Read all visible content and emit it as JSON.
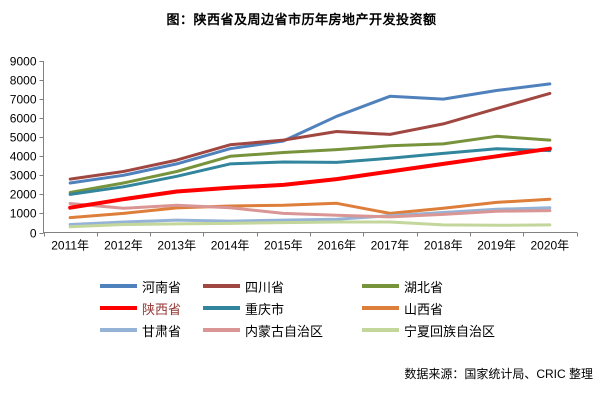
{
  "chart_data": {
    "type": "line",
    "title": "图：陕西省及周边省市历年房地产开发投资额",
    "xlabel": "",
    "ylabel": "",
    "ylim": [
      0,
      9000
    ],
    "y_tick_step": 1000,
    "y_tick_labels": [
      "0",
      "1000",
      "2000",
      "3000",
      "4000",
      "5000",
      "6000",
      "7000",
      "8000",
      "9000"
    ],
    "grid": false,
    "legend_position": "bottom",
    "categories": [
      "2011年",
      "2012年",
      "2013年",
      "2014年",
      "2015年",
      "2016年",
      "2017年",
      "2018年",
      "2019年",
      "2020年"
    ],
    "series": [
      {
        "id": "henan",
        "name": "河南省",
        "color": "#4F81BD",
        "label_color": "#000000",
        "highlight": false,
        "values": [
          2600,
          3000,
          3600,
          4400,
          4800,
          6100,
          7150,
          7000,
          7450,
          7800
        ]
      },
      {
        "id": "sichuan",
        "name": "四川省",
        "color": "#A14742",
        "label_color": "#000000",
        "highlight": false,
        "values": [
          2800,
          3200,
          3800,
          4600,
          4850,
          5300,
          5150,
          5700,
          6500,
          7300
        ]
      },
      {
        "id": "hubei",
        "name": "湖北省",
        "color": "#77933C",
        "label_color": "#000000",
        "highlight": false,
        "values": [
          2100,
          2600,
          3200,
          4000,
          4200,
          4350,
          4550,
          4650,
          5050,
          4850
        ]
      },
      {
        "id": "shaanxi",
        "name": "陕西省",
        "color": "#FF0000",
        "label_color": "#953735",
        "highlight": true,
        "values": [
          1300,
          1750,
          2150,
          2350,
          2500,
          2800,
          3200,
          3600,
          4000,
          4400
        ]
      },
      {
        "id": "chongqing",
        "name": "重庆市",
        "color": "#31859C",
        "label_color": "#000000",
        "highlight": false,
        "values": [
          2000,
          2400,
          2950,
          3600,
          3700,
          3680,
          3900,
          4150,
          4400,
          4300
        ]
      },
      {
        "id": "shanxi",
        "name": "山西省",
        "color": "#DD7E3B",
        "label_color": "#000000",
        "highlight": false,
        "values": [
          780,
          1000,
          1290,
          1390,
          1430,
          1530,
          1000,
          1270,
          1580,
          1750
        ]
      },
      {
        "id": "gansu",
        "name": "甘肃省",
        "color": "#95B3D7",
        "label_color": "#000000",
        "highlight": false,
        "values": [
          420,
          550,
          650,
          600,
          650,
          700,
          880,
          1050,
          1220,
          1300
        ]
      },
      {
        "id": "inner-mongolia",
        "name": "内蒙古自治区",
        "color": "#D99694",
        "label_color": "#000000",
        "highlight": false,
        "values": [
          1520,
          1270,
          1430,
          1300,
          1000,
          900,
          820,
          950,
          1120,
          1150
        ]
      },
      {
        "id": "ningxia",
        "name": "宁夏回族自治区",
        "color": "#C3D69B",
        "label_color": "#000000",
        "highlight": false,
        "values": [
          300,
          420,
          450,
          480,
          520,
          550,
          550,
          400,
          380,
          400
        ]
      }
    ],
    "legend_order": [
      "河南省",
      "四川省",
      "湖北省",
      "陕西省",
      "重庆市",
      "山西省",
      "甘肃省",
      "内蒙古自治区",
      "宁夏回族自治区"
    ]
  },
  "footer": {
    "source_note": "数据来源：国家统计局、CRIC 整理"
  }
}
